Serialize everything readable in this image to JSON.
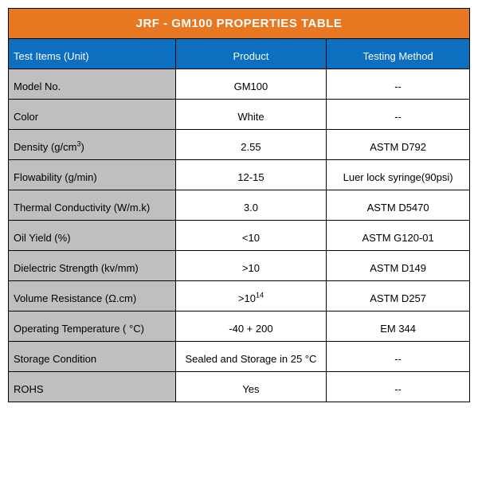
{
  "title": "JRF - GM100 PROPERTIES TABLE",
  "headers": {
    "item": "Test Items (Unit)",
    "product": "Product",
    "method": "Testing Method"
  },
  "rows": [
    {
      "item": "Model No.",
      "product": "GM100",
      "method": "--"
    },
    {
      "item": "Color",
      "product": "White",
      "method": "--"
    },
    {
      "item_html": "Density (g/cm<sup>3</sup>)",
      "product": "2.55",
      "method": "ASTM D792"
    },
    {
      "item": "Flowability (g/min)",
      "product": "12-15",
      "method": "Luer lock syringe(90psi)"
    },
    {
      "item": "Thermal Conductivity (W/m.k)",
      "product": "3.0",
      "method": "ASTM D5470"
    },
    {
      "item": "Oil Yield (%)",
      "product": "<10",
      "method": "ASTM G120-01"
    },
    {
      "item": "Dielectric Strength (kv/mm)",
      "product": ">10",
      "method": "ASTM D149"
    },
    {
      "item": "Volume Resistance (Ω.cm)",
      "product_html": ">10<sup>14</sup>",
      "method": "ASTM D257"
    },
    {
      "item": "Operating Temperature ( °C)",
      "product": "-40 + 200",
      "method": "EM 344"
    },
    {
      "item": "Storage Condition",
      "product": "Sealed and Storage in 25 °C",
      "method": "--"
    },
    {
      "item": "ROHS",
      "product": "Yes",
      "method": "--"
    }
  ],
  "colors": {
    "title_bg": "#e87722",
    "header_bg": "#0c6fc0",
    "item_col_bg": "#bfbfbf",
    "data_bg": "#ffffff",
    "border": "#000000",
    "title_text": "#ffffff",
    "header_text": "#ffffff",
    "body_text": "#000000"
  }
}
